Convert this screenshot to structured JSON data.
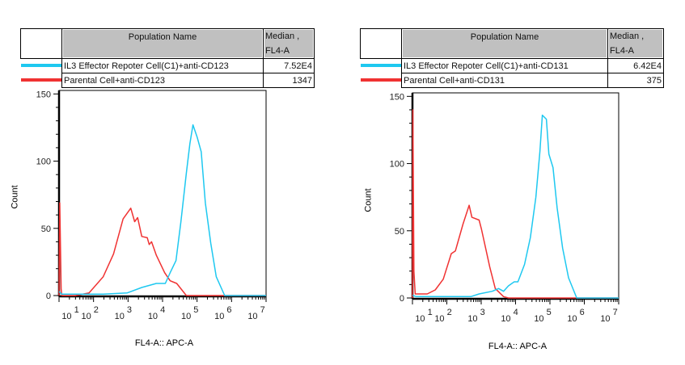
{
  "panels": [
    {
      "legend": {
        "header_name": "Population Name",
        "header_median": "Median ,",
        "header_median_param": "FL4-A",
        "rows": [
          {
            "name": "IL3 Effector Repoter Cell(C1)+anti-CD123",
            "median": "7.52E4",
            "color": "#1ec8f0"
          },
          {
            "name": "Parental Cell+anti-CD123",
            "median": "1347",
            "color": "#f03232"
          }
        ]
      },
      "chart_data": {
        "type": "line",
        "xlabel": "FL4-A:: APC-A",
        "ylabel": "Count",
        "xscale": "log",
        "xlim": [
          10,
          10000000
        ],
        "ylim": [
          0,
          152
        ],
        "x_ticks": [
          {
            "base": "10",
            "exp": "1"
          },
          {
            "base": "10",
            "exp": "2"
          },
          {
            "base": "10",
            "exp": "3"
          },
          {
            "base": "10",
            "exp": "4"
          },
          {
            "base": "10",
            "exp": "5"
          },
          {
            "base": "10",
            "exp": "6"
          },
          {
            "base": "10",
            "exp": "7"
          }
        ],
        "y_ticks": [
          "0",
          "50",
          "100",
          "150"
        ],
        "series": [
          {
            "name": "IL3 Effector Repoter Cell(C1)+anti-CD123",
            "color": "#1ec8f0",
            "x": [
              10,
              12,
              190,
              950,
              2500,
              6600,
              12000,
              16600,
              24500,
              34000,
              49000,
              62000,
              76000,
              100000,
              132000,
              174000,
              250000,
              360000,
              630000,
              10000000
            ],
            "y": [
              3,
              1,
              1,
              2,
              6,
              9,
              9,
              17,
              26,
              55,
              91,
              113,
              127,
              118,
              107,
              69,
              39,
              14,
              0,
              0
            ]
          },
          {
            "name": "Parental Cell+anti-CD123",
            "color": "#f03232",
            "x": [
              10,
              10.5,
              11.5,
              12,
              30,
              74,
              190,
              380,
              720,
              1200,
              1550,
              1900,
              2500,
              3600,
              4100,
              4800,
              6600,
              11500,
              16600,
              25700,
              49000,
              10000000
            ],
            "y": [
              0,
              69,
              5,
              0,
              0,
              2,
              14,
              31,
              57,
              65,
              55,
              58,
              44,
              43,
              38,
              40,
              30,
              17,
              11,
              9,
              0,
              0
            ]
          }
        ]
      }
    },
    {
      "legend": {
        "header_name": "Population Name",
        "header_median": "Median ,",
        "header_median_param": "FL4-A",
        "rows": [
          {
            "name": "IL3 Effector Repoter Cell(C1)+anti-CD131",
            "median": "6.42E4",
            "color": "#1ec8f0"
          },
          {
            "name": "Parental Cell+anti-CD131",
            "median": "375",
            "color": "#f03232"
          }
        ]
      },
      "chart_data": {
        "type": "line",
        "xlabel": "FL4-A:: APC-A",
        "ylabel": "Count",
        "xscale": "log",
        "xlim": [
          10,
          10000000
        ],
        "ylim": [
          0,
          152
        ],
        "x_ticks": [
          {
            "base": "10",
            "exp": "1"
          },
          {
            "base": "10",
            "exp": "2"
          },
          {
            "base": "10",
            "exp": "3"
          },
          {
            "base": "10",
            "exp": "4"
          },
          {
            "base": "10",
            "exp": "5"
          },
          {
            "base": "10",
            "exp": "6"
          },
          {
            "base": "10",
            "exp": "7"
          }
        ],
        "y_ticks": [
          "0",
          "50",
          "100",
          "150"
        ],
        "series": [
          {
            "name": "IL3 Effector Repoter Cell(C1)+anti-CD131",
            "color": "#1ec8f0",
            "x": [
              10,
              13,
              170,
              500,
              870,
              2100,
              3200,
              4470,
              6200,
              9100,
              11700,
              18200,
              27000,
              39000,
              51000,
              60000,
              79000,
              93000,
              123000,
              162000,
              234000,
              347000,
              600000,
              10000000
            ],
            "y": [
              2,
              1,
              1,
              1,
              3,
              5,
              7,
              5,
              9,
              12,
              12,
              25,
              45,
              75,
              109,
              136,
              133,
              107,
              97,
              67,
              37,
              15,
              0,
              0
            ]
          },
          {
            "name": "Parental Cell+anti-CD131",
            "color": "#f03232",
            "x": [
              10,
              10.3,
              11,
              12,
              13,
              27,
              46,
              79,
              135,
              178,
              295,
              447,
              537,
              870,
              1020,
              1350,
              1780,
              2570,
              4470,
              6200,
              10000000
            ],
            "y": [
              0,
              140,
              20,
              3,
              3,
              3,
              6,
              14,
              33,
              35,
              55,
              69,
              60,
              58,
              51,
              37,
              23,
              7,
              1,
              0,
              0
            ]
          }
        ]
      }
    }
  ]
}
